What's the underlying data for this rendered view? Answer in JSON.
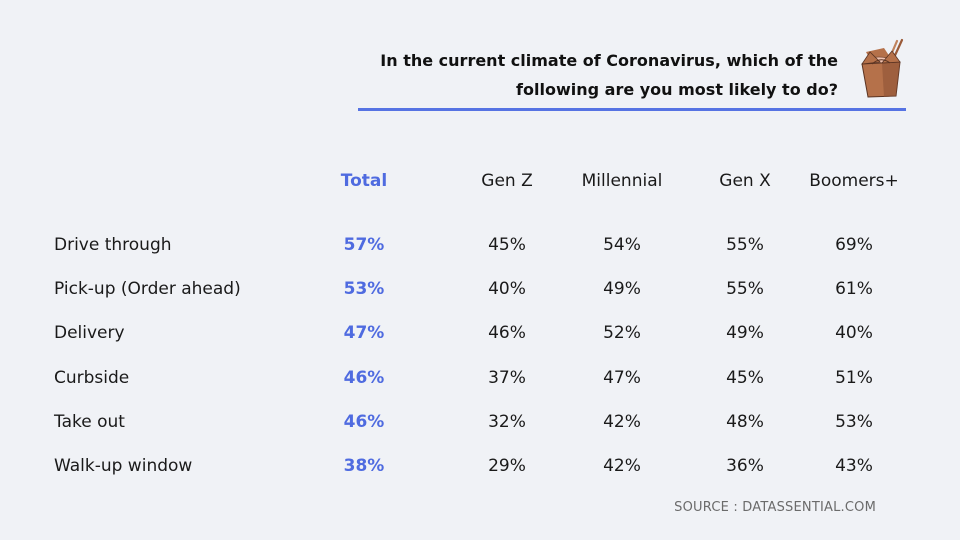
{
  "title": {
    "line1": "In the current climate of Coronavirus, which of the",
    "line2": "following are you most likely to do?"
  },
  "source": "SOURCE : DATASSENTIAL.COM",
  "colors": {
    "accent": "#4f6be0",
    "rule": "#5673e3",
    "box": "#b5714a",
    "box_dark": "#8a5034"
  },
  "icons": {
    "title_icon": "takeout-box-icon"
  },
  "chart_data": {
    "type": "table",
    "columns": [
      "Total",
      "Gen Z",
      "Millennial",
      "Gen X",
      "Boomers+"
    ],
    "highlight_column": "Total",
    "rows": [
      {
        "label": "Drive through",
        "values": [
          "57%",
          "45%",
          "54%",
          "55%",
          "69%"
        ]
      },
      {
        "label": "Pick-up (Order ahead)",
        "values": [
          "53%",
          "40%",
          "49%",
          "55%",
          "61%"
        ]
      },
      {
        "label": "Delivery",
        "values": [
          "47%",
          "46%",
          "52%",
          "49%",
          "40%"
        ]
      },
      {
        "label": "Curbside",
        "values": [
          "46%",
          "37%",
          "47%",
          "45%",
          "51%"
        ]
      },
      {
        "label": "Take out",
        "values": [
          "46%",
          "32%",
          "42%",
          "48%",
          "53%"
        ]
      },
      {
        "label": "Walk-up window",
        "values": [
          "38%",
          "29%",
          "42%",
          "36%",
          "43%"
        ]
      }
    ]
  }
}
